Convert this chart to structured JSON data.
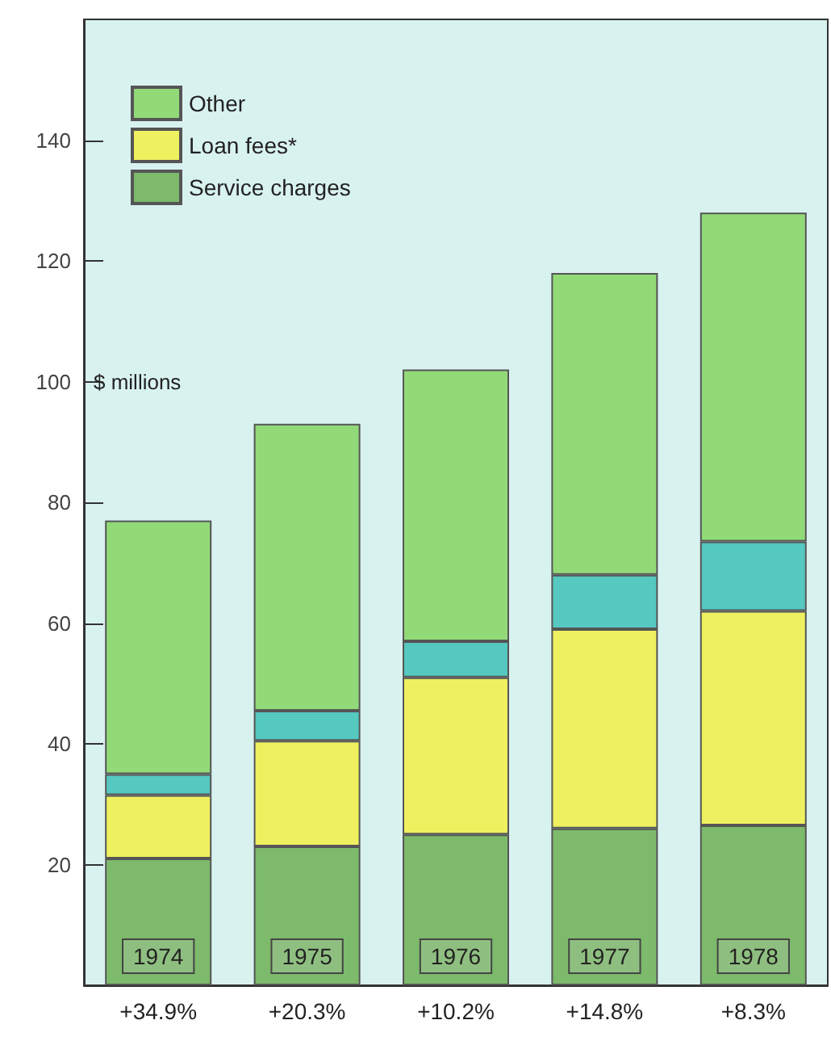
{
  "chart_data": {
    "type": "bar",
    "stacked": true,
    "ylabel": "$ millions",
    "categories": [
      "1974",
      "1975",
      "1976",
      "1977",
      "1978"
    ],
    "series": [
      {
        "name": "Service charges",
        "color": "#7dba6c",
        "values": [
          21,
          23,
          25,
          26,
          26.5
        ]
      },
      {
        "name": "Loan fees*",
        "color": "#eef060",
        "values": [
          10.5,
          17.5,
          26,
          33,
          35.5
        ]
      },
      {
        "color": "#55c8c0",
        "values": [
          3.5,
          5,
          6,
          9,
          11.5
        ]
      },
      {
        "name": "Other",
        "color": "#92da78",
        "values": [
          42,
          47.5,
          45,
          50,
          54.5
        ]
      }
    ],
    "ylim": [
      0,
      160
    ],
    "yticks": [
      20,
      40,
      60,
      80,
      100,
      120,
      140
    ],
    "grid": false,
    "legend": "top left",
    "annotations": [
      "+34.9%",
      "+20.3%",
      "+10.2%",
      "+14.8%",
      "+8.3%"
    ]
  }
}
